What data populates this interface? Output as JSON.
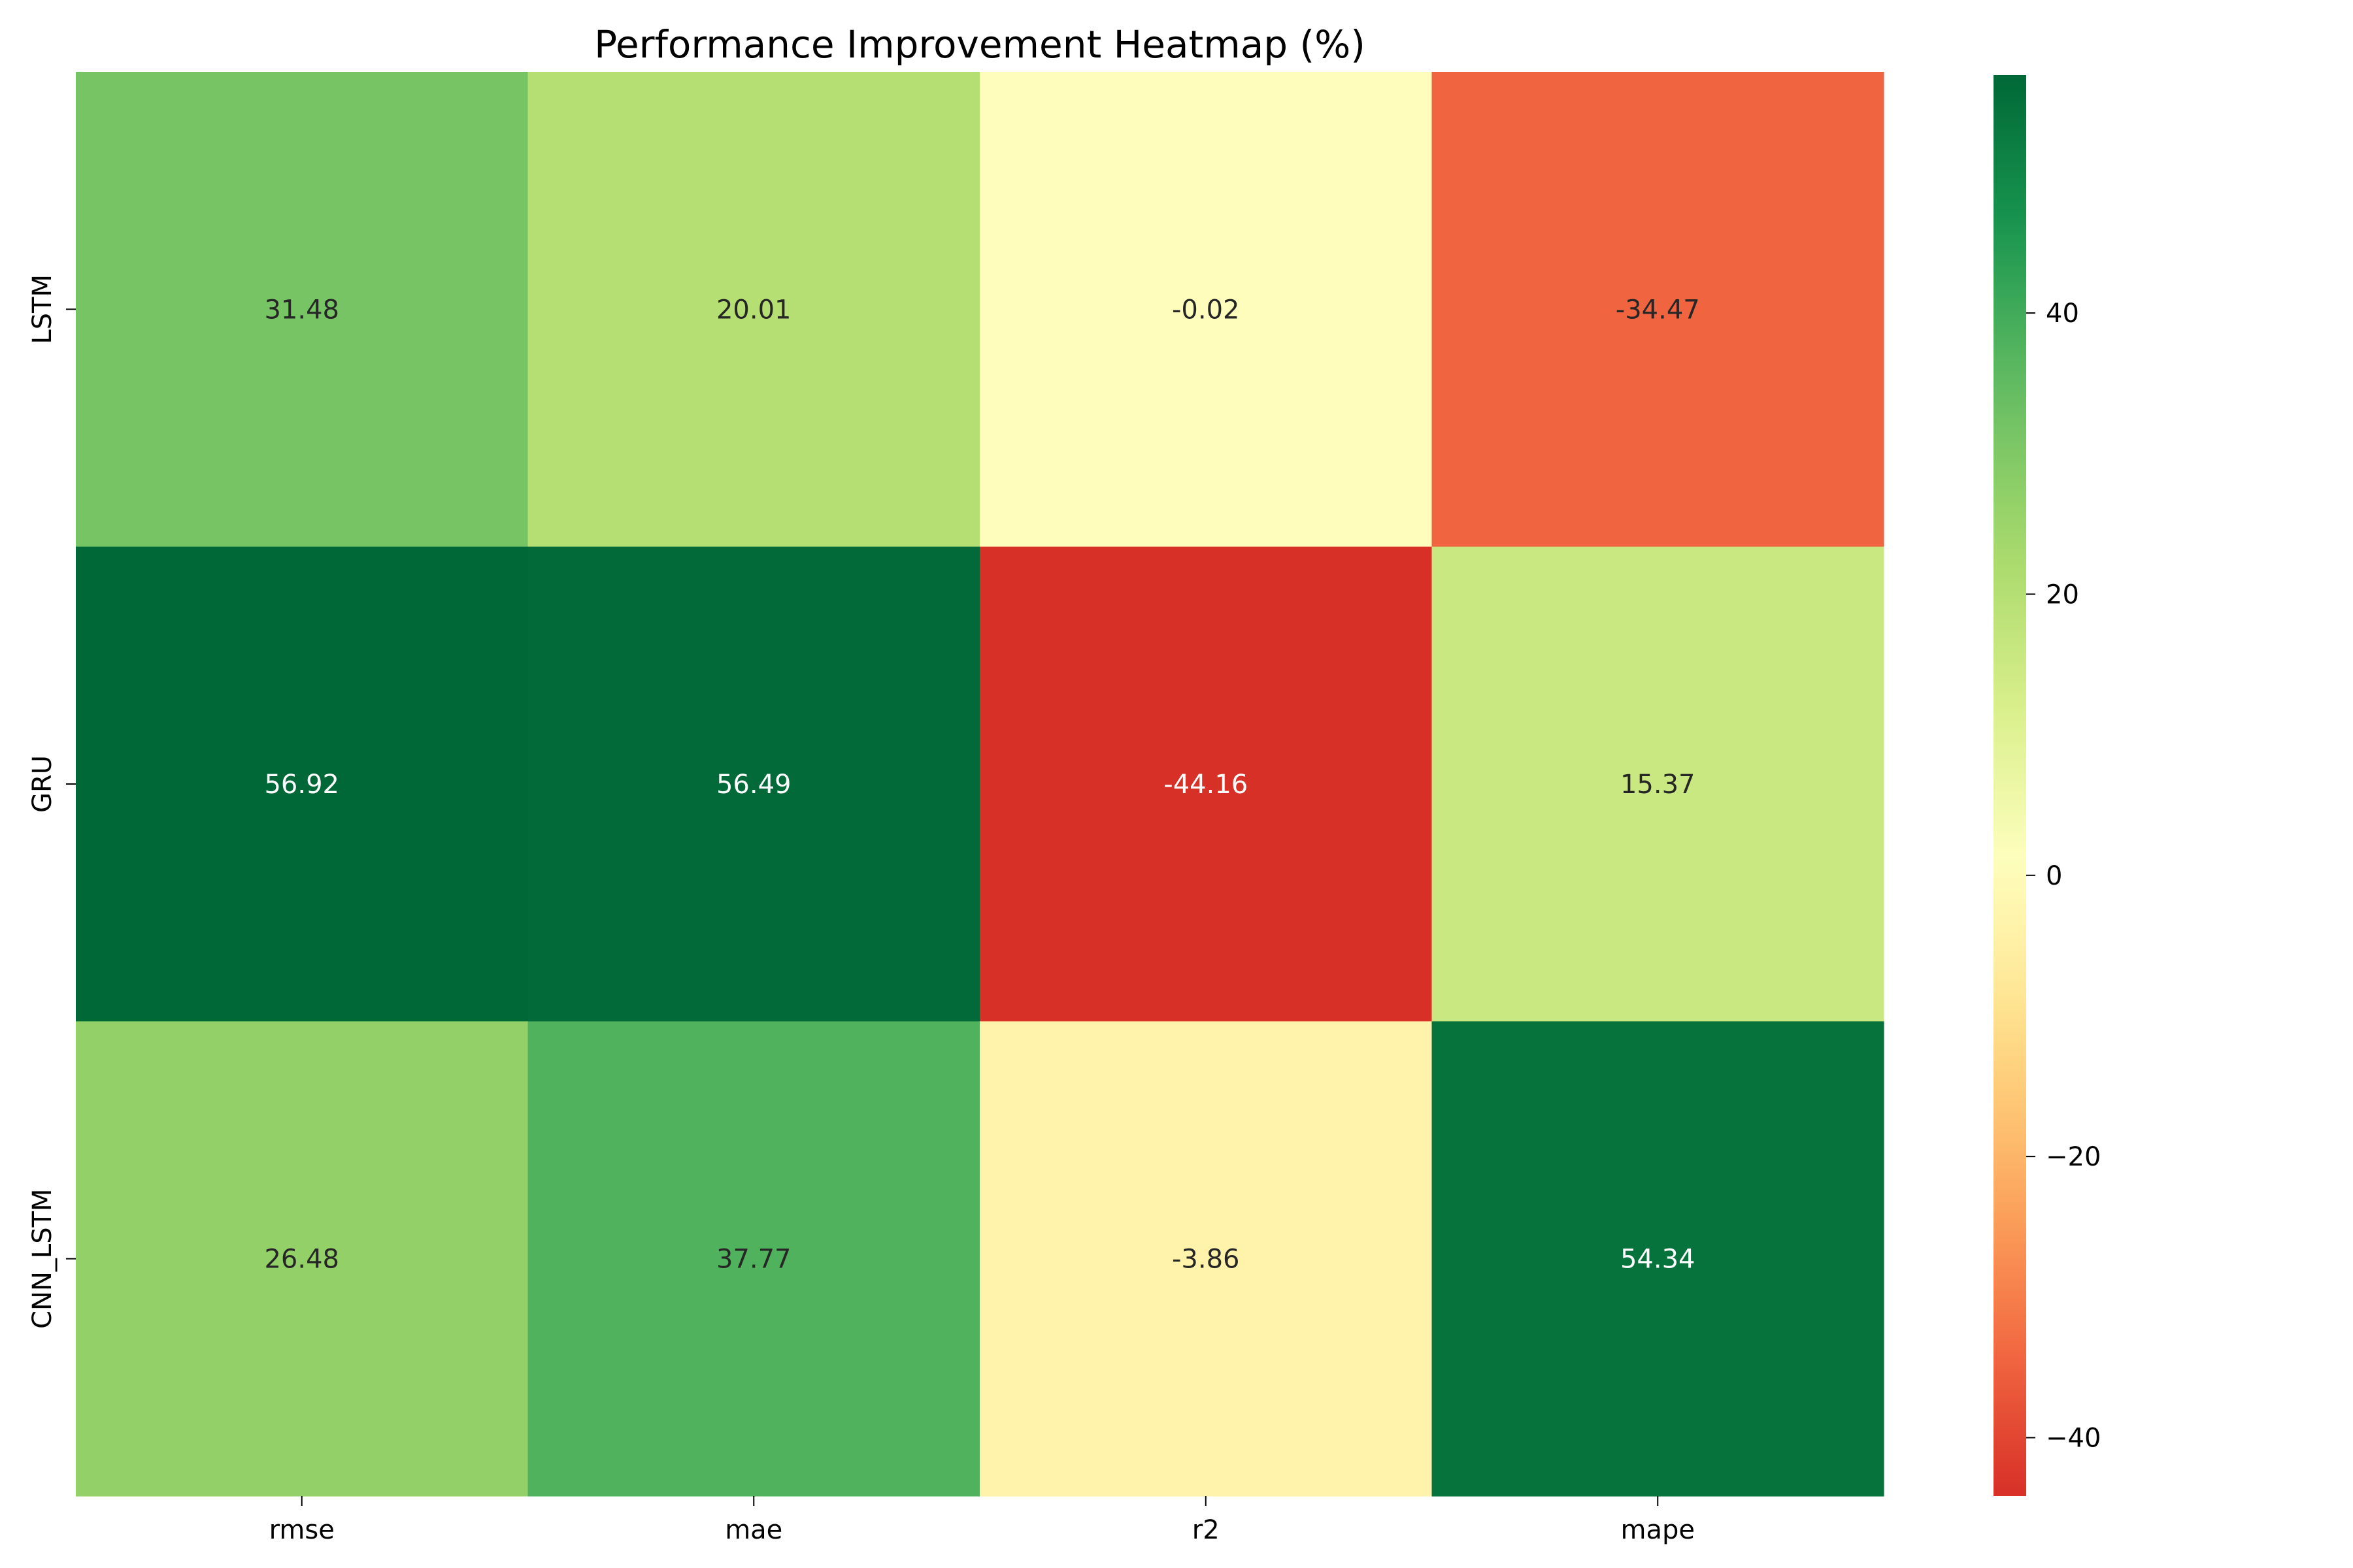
{
  "chart_data": {
    "type": "heatmap",
    "title": "Performance Improvement Heatmap (%)",
    "xlabel": "",
    "ylabel": "",
    "columns": [
      "rmse",
      "mae",
      "r2",
      "mape"
    ],
    "rows": [
      "LSTM",
      "GRU",
      "CNN_LSTM"
    ],
    "values": [
      [
        31.48,
        20.01,
        -0.02,
        -34.47
      ],
      [
        56.92,
        56.49,
        -44.16,
        15.37
      ],
      [
        26.48,
        37.77,
        -3.86,
        54.34
      ]
    ],
    "labels": [
      [
        "31.48",
        "20.01",
        "-0.02",
        "-34.47"
      ],
      [
        "56.92",
        "56.49",
        "-44.16",
        "15.37"
      ],
      [
        "26.48",
        "37.77",
        "-3.86",
        "54.34"
      ]
    ],
    "colormap": "RdYlGn",
    "vmin": -44.16,
    "vmax": 56.92,
    "colorbar": {
      "ticks": [
        40,
        20,
        0,
        -20,
        -40
      ],
      "tick_labels": [
        "40",
        "20",
        "0",
        "−20",
        "−40"
      ]
    },
    "grid": false,
    "legend": "colorbar-right"
  }
}
